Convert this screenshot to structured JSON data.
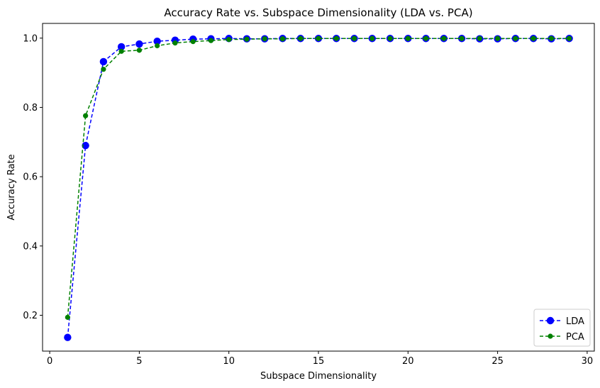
{
  "chart_data": {
    "type": "line",
    "title": "Accuracy Rate vs. Subspace Dimensionality (LDA vs. PCA)",
    "xlabel": "Subspace Dimensionality",
    "ylabel": "Accuracy Rate",
    "xlim": [
      -0.4,
      30.4
    ],
    "ylim": [
      0.0965,
      1.0425
    ],
    "xticks": [
      0,
      5,
      10,
      15,
      20,
      25,
      30
    ],
    "yticks": [
      0.2,
      0.4,
      0.6,
      0.8,
      1.0
    ],
    "xtick_labels": [
      "0",
      "5",
      "10",
      "15",
      "20",
      "25",
      "30"
    ],
    "ytick_labels": [
      "0.2",
      "0.4",
      "0.6",
      "0.8",
      "1.0"
    ],
    "grid": false,
    "legend_position": "bottom-right",
    "x": [
      1,
      2,
      3,
      4,
      5,
      6,
      7,
      8,
      9,
      10,
      11,
      12,
      13,
      14,
      15,
      16,
      17,
      18,
      19,
      20,
      21,
      22,
      23,
      24,
      25,
      26,
      27,
      28,
      29
    ],
    "series": [
      {
        "name": "LDA",
        "color": "#0000ff",
        "linestyle": "dashed",
        "marker": "circle-large",
        "values": [
          0.136,
          0.69,
          0.932,
          0.975,
          0.983,
          0.991,
          0.994,
          0.997,
          0.998,
          0.999,
          0.998,
          0.998,
          0.999,
          0.999,
          0.999,
          0.999,
          0.999,
          0.999,
          0.999,
          0.999,
          0.999,
          0.999,
          0.999,
          0.998,
          0.998,
          0.999,
          0.999,
          0.998,
          0.999
        ]
      },
      {
        "name": "PCA",
        "color": "#008000",
        "linestyle": "dashed",
        "marker": "circle-small",
        "values": [
          0.194,
          0.776,
          0.91,
          0.962,
          0.965,
          0.978,
          0.986,
          0.99,
          0.993,
          0.996,
          0.997,
          0.998,
          0.998,
          0.999,
          0.999,
          0.999,
          0.999,
          0.999,
          0.999,
          0.999,
          0.999,
          0.999,
          0.999,
          0.999,
          0.999,
          0.999,
          0.999,
          0.999,
          0.999
        ]
      }
    ]
  }
}
